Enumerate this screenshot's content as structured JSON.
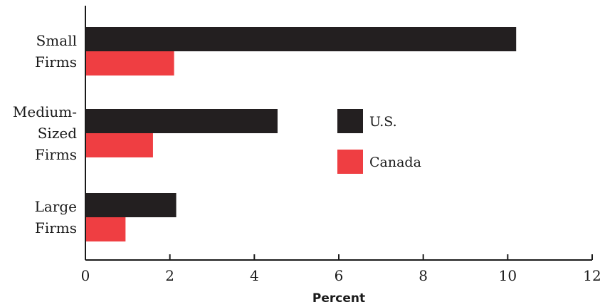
{
  "chart_data": {
    "type": "bar",
    "orientation": "horizontal",
    "categories": [
      [
        "Small",
        "Firms"
      ],
      [
        "Medium-",
        "Sized",
        "Firms"
      ],
      [
        "Large",
        "Firms"
      ]
    ],
    "series": [
      {
        "name": "U.S.",
        "color": "#231f20",
        "values": [
          10.2,
          4.55,
          2.15
        ]
      },
      {
        "name": "Canada",
        "color": "#ef3e42",
        "values": [
          2.1,
          1.6,
          0.95
        ]
      }
    ],
    "xlabel": "Percent",
    "xlim": [
      0,
      12
    ],
    "xticks": [
      0,
      2,
      4,
      6,
      8,
      10,
      12
    ],
    "grid": false,
    "legend_position": "center-right"
  }
}
